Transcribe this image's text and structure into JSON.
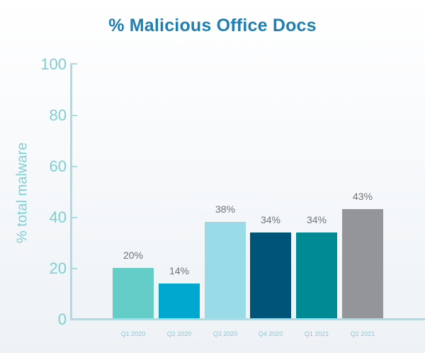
{
  "chart_data": {
    "type": "bar",
    "title": "% Malicious Office Docs",
    "xlabel": "",
    "ylabel": "% total malware",
    "ylim": [
      0,
      100
    ],
    "yticks": [
      "0",
      "20",
      "40",
      "60",
      "80",
      "100"
    ],
    "grid": false,
    "categories": [
      "Q1 2020",
      "Q2 2020",
      "Q3 2020",
      "Q4 2020",
      "Q1 2021",
      "Q2 2021"
    ],
    "values": [
      20,
      14,
      38,
      34,
      34,
      43
    ],
    "value_labels": [
      "20%",
      "14%",
      "38%",
      "34%",
      "34%",
      "43%"
    ],
    "colors": [
      "#64cdc8",
      "#00a8cf",
      "#9adbe8",
      "#005478",
      "#008b94",
      "#939598"
    ]
  }
}
